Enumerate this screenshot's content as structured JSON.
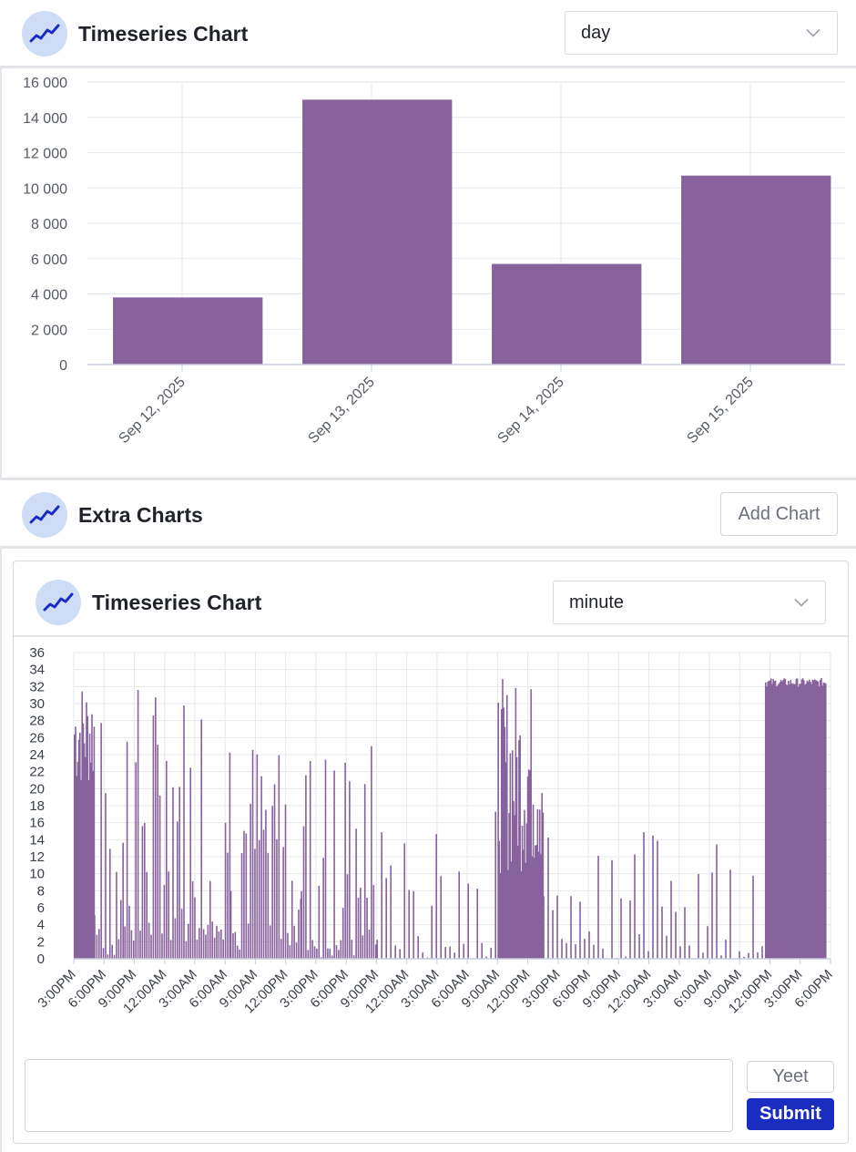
{
  "top_panel": {
    "title": "Timeseries Chart",
    "icon": "line-chart-icon",
    "granularity": {
      "selected": "day"
    }
  },
  "extra_section": {
    "title": "Extra Charts",
    "icon": "line-chart-icon",
    "add_button_label": "Add Chart"
  },
  "extra_card": {
    "title": "Timeseries Chart",
    "icon": "line-chart-icon",
    "granularity": {
      "selected": "minute"
    },
    "input": {
      "value": "",
      "placeholder": ""
    },
    "yeet_label": "Yeet",
    "submit_label": "Submit"
  },
  "colors": {
    "bar": "#87629d",
    "accent": "#1b2cc1",
    "icon_bg": "#cfdcf5",
    "grid": "#e6e7ea"
  },
  "chart_data": [
    {
      "type": "bar",
      "categories": [
        "Sep 12, 2025",
        "Sep 13, 2025",
        "Sep 14, 2025",
        "Sep 15, 2025"
      ],
      "values": [
        3800,
        15000,
        5700,
        10700
      ],
      "yticks": [
        "0",
        "2 000",
        "4 000",
        "6 000",
        "8 000",
        "10 000",
        "12 000",
        "14 000",
        "16 000"
      ],
      "ylim": [
        0,
        16000
      ],
      "grid": true,
      "title": "",
      "xlabel": "",
      "ylabel": ""
    },
    {
      "type": "bar",
      "x_tick_labels": [
        "3:00PM",
        "6:00PM",
        "9:00PM",
        "12:00AM",
        "3:00AM",
        "6:00AM",
        "9:00AM",
        "12:00PM",
        "3:00PM",
        "6:00PM",
        "9:00PM",
        "12:00AM",
        "3:00AM",
        "6:00AM",
        "9:00AM",
        "12:00PM",
        "3:00PM",
        "6:00PM",
        "9:00PM",
        "12:00AM",
        "3:00AM",
        "6:00AM",
        "9:00AM",
        "12:00PM",
        "3:00PM",
        "6:00PM"
      ],
      "yticks": [
        "0",
        "2",
        "4",
        "6",
        "8",
        "10",
        "12",
        "14",
        "16",
        "18",
        "20",
        "22",
        "24",
        "26",
        "28",
        "30",
        "32",
        "34",
        "36"
      ],
      "ylim": [
        0,
        36
      ],
      "interval_hours": 3,
      "series_description": "per-minute counts spanning 75 hours; dense at start, mid bursts, sparse spikes, dense block at end",
      "segments": [
        {
          "from_hour": 0.0,
          "to_hour": 2.0,
          "min": 20,
          "max": 33
        },
        {
          "from_hour": 2.0,
          "to_hour": 5.0,
          "min": 0,
          "max": 29
        },
        {
          "from_hour": 5.0,
          "to_hour": 15.5,
          "min": 2,
          "max": 33
        },
        {
          "from_hour": 15.5,
          "to_hour": 22.5,
          "min": 1,
          "max": 27
        },
        {
          "from_hour": 22.5,
          "to_hour": 30.0,
          "min": 0,
          "max": 26
        },
        {
          "from_hour": 30.0,
          "to_hour": 42.0,
          "min": 0,
          "max": 18
        },
        {
          "from_hour": 42.0,
          "to_hour": 46.5,
          "min": 10,
          "max": 33
        },
        {
          "from_hour": 46.5,
          "to_hour": 68.5,
          "min": 0,
          "max": 16
        },
        {
          "from_hour": 68.5,
          "to_hour": 74.5,
          "min": 32,
          "max": 33
        }
      ],
      "title": "",
      "xlabel": "",
      "ylabel": ""
    }
  ]
}
